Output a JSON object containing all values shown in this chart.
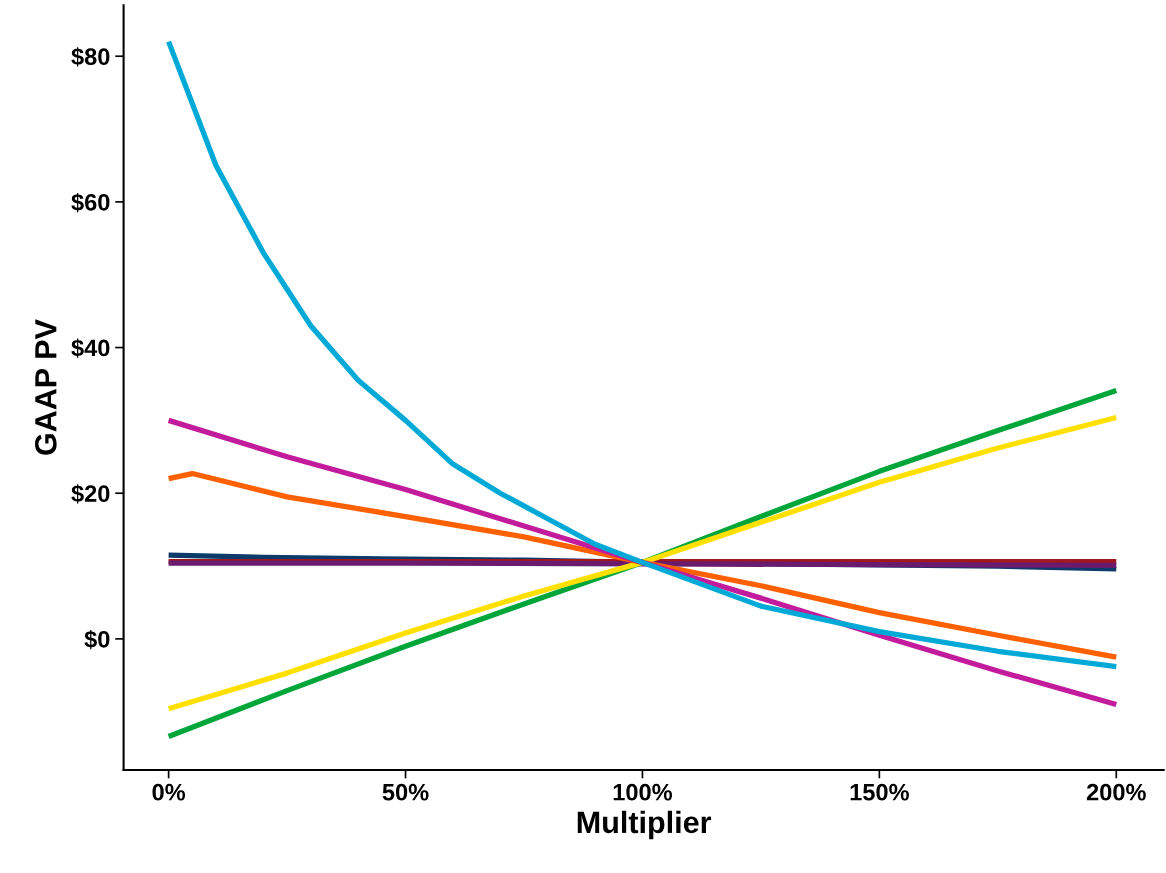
{
  "chart_data": {
    "type": "line",
    "xlabel": "Multiplier",
    "ylabel": "GAAP PV",
    "xlim": [
      -9.5,
      210
    ],
    "ylim": [
      -18,
      87
    ],
    "xticks": [
      {
        "value": 0,
        "label": "0%"
      },
      {
        "value": 50,
        "label": "50%"
      },
      {
        "value": 100,
        "label": "100%"
      },
      {
        "value": 150,
        "label": "150%"
      },
      {
        "value": 200,
        "label": "200%"
      }
    ],
    "yticks": [
      {
        "value": 0,
        "label": "$0"
      },
      {
        "value": 20,
        "label": "$20"
      },
      {
        "value": 40,
        "label": "$40"
      },
      {
        "value": 60,
        "label": "$60"
      },
      {
        "value": 80,
        "label": "$80"
      }
    ],
    "grid": false,
    "marker": "none",
    "line_style": "solid",
    "series": [
      {
        "color": "#0b3a6b",
        "x": [
          0,
          20,
          45,
          75,
          100,
          130,
          175,
          200
        ],
        "values": [
          11.5,
          11.2,
          11.0,
          10.8,
          10.5,
          10.3,
          10.0,
          9.6
        ]
      },
      {
        "color": "#a0181e",
        "x": [
          0,
          100,
          200
        ],
        "values": [
          10.6,
          10.6,
          10.6
        ]
      },
      {
        "color": "#6a1b6e",
        "x": [
          0,
          50,
          100,
          150,
          200
        ],
        "values": [
          10.4,
          10.4,
          10.3,
          10.2,
          10.1
        ]
      },
      {
        "color": "#00a63a",
        "x": [
          0,
          25,
          50,
          75,
          100,
          125,
          150,
          175,
          200
        ],
        "values": [
          -13.4,
          -7.1,
          -1,
          4.8,
          10.5,
          16.8,
          23,
          28.6,
          34.1
        ]
      },
      {
        "color": "#ffe000",
        "x": [
          0,
          25,
          50,
          75,
          100,
          125,
          150,
          175,
          200
        ],
        "values": [
          -9.6,
          -4.7,
          0.8,
          5.9,
          10.5,
          16,
          21.5,
          26.2,
          30.4
        ]
      },
      {
        "color": "#ff6000",
        "x": [
          0,
          5,
          12.5,
          25,
          50,
          75,
          100,
          125,
          150,
          175,
          200
        ],
        "values": [
          22,
          22.7,
          21.5,
          19.5,
          16.8,
          14,
          10.5,
          7.3,
          3.6,
          0.5,
          -2.5
        ]
      },
      {
        "color": "#c21b9c",
        "x": [
          0,
          25,
          50,
          75,
          100,
          125,
          150,
          175,
          200
        ],
        "values": [
          30,
          25,
          20.5,
          15.5,
          10.5,
          5.6,
          0.5,
          -4.4,
          -9
        ]
      },
      {
        "color": "#00a9d6",
        "x": [
          0,
          10,
          20,
          30,
          40,
          50,
          60,
          70,
          80,
          90,
          100,
          125,
          150,
          175,
          200
        ],
        "values": [
          82,
          65,
          53,
          43,
          35.5,
          30,
          24,
          20,
          16.5,
          13,
          10.5,
          4.5,
          1,
          -1.7,
          -3.8
        ]
      }
    ]
  }
}
